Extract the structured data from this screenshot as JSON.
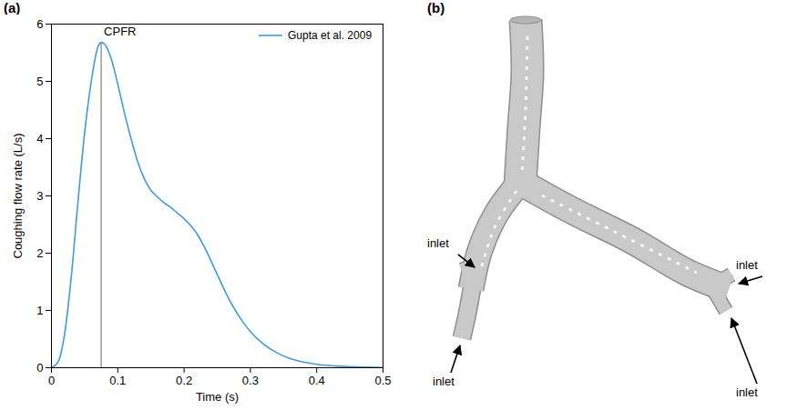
{
  "chart_data": {
    "type": "line",
    "panel_label": "(a)",
    "x_label": "Time (s)",
    "y_label": "Coughing flow rate (L/s)",
    "xlim": [
      0,
      0.5
    ],
    "ylim": [
      0,
      6
    ],
    "xticks": [
      0,
      0.1,
      0.2,
      0.3,
      0.4,
      0.5
    ],
    "yticks": [
      0,
      1,
      2,
      3,
      4,
      5,
      6
    ],
    "legend": "upper right",
    "x": [
      0,
      0.01,
      0.02,
      0.03,
      0.04,
      0.05,
      0.06,
      0.07,
      0.075,
      0.08,
      0.09,
      0.1,
      0.11,
      0.12,
      0.13,
      0.14,
      0.15,
      0.16,
      0.17,
      0.18,
      0.19,
      0.2,
      0.21,
      0.22,
      0.23,
      0.24,
      0.25,
      0.26,
      0.27,
      0.28,
      0.29,
      0.3,
      0.32,
      0.34,
      0.36,
      0.38,
      0.4,
      0.43,
      0.46,
      0.5
    ],
    "series": [
      {
        "name": "Gupta et al. 2009",
        "color": "#3d9ae8",
        "values": [
          0,
          0.1,
          0.6,
          1.6,
          2.9,
          4.1,
          5.0,
          5.6,
          5.68,
          5.65,
          5.4,
          4.95,
          4.45,
          4.0,
          3.6,
          3.3,
          3.1,
          2.98,
          2.88,
          2.8,
          2.7,
          2.6,
          2.48,
          2.33,
          2.12,
          1.88,
          1.63,
          1.38,
          1.15,
          0.95,
          0.78,
          0.63,
          0.41,
          0.26,
          0.16,
          0.1,
          0.06,
          0.03,
          0.015,
          0.005
        ]
      }
    ],
    "annotations": [
      {
        "text": "CPFR",
        "x": 0.075,
        "y": 5.68
      }
    ]
  },
  "diagram": {
    "panel_label": "(b)",
    "inlets": [
      {
        "label": "inlet"
      },
      {
        "label": "inlet"
      },
      {
        "label": "inlet"
      },
      {
        "label": "inlet"
      }
    ]
  }
}
